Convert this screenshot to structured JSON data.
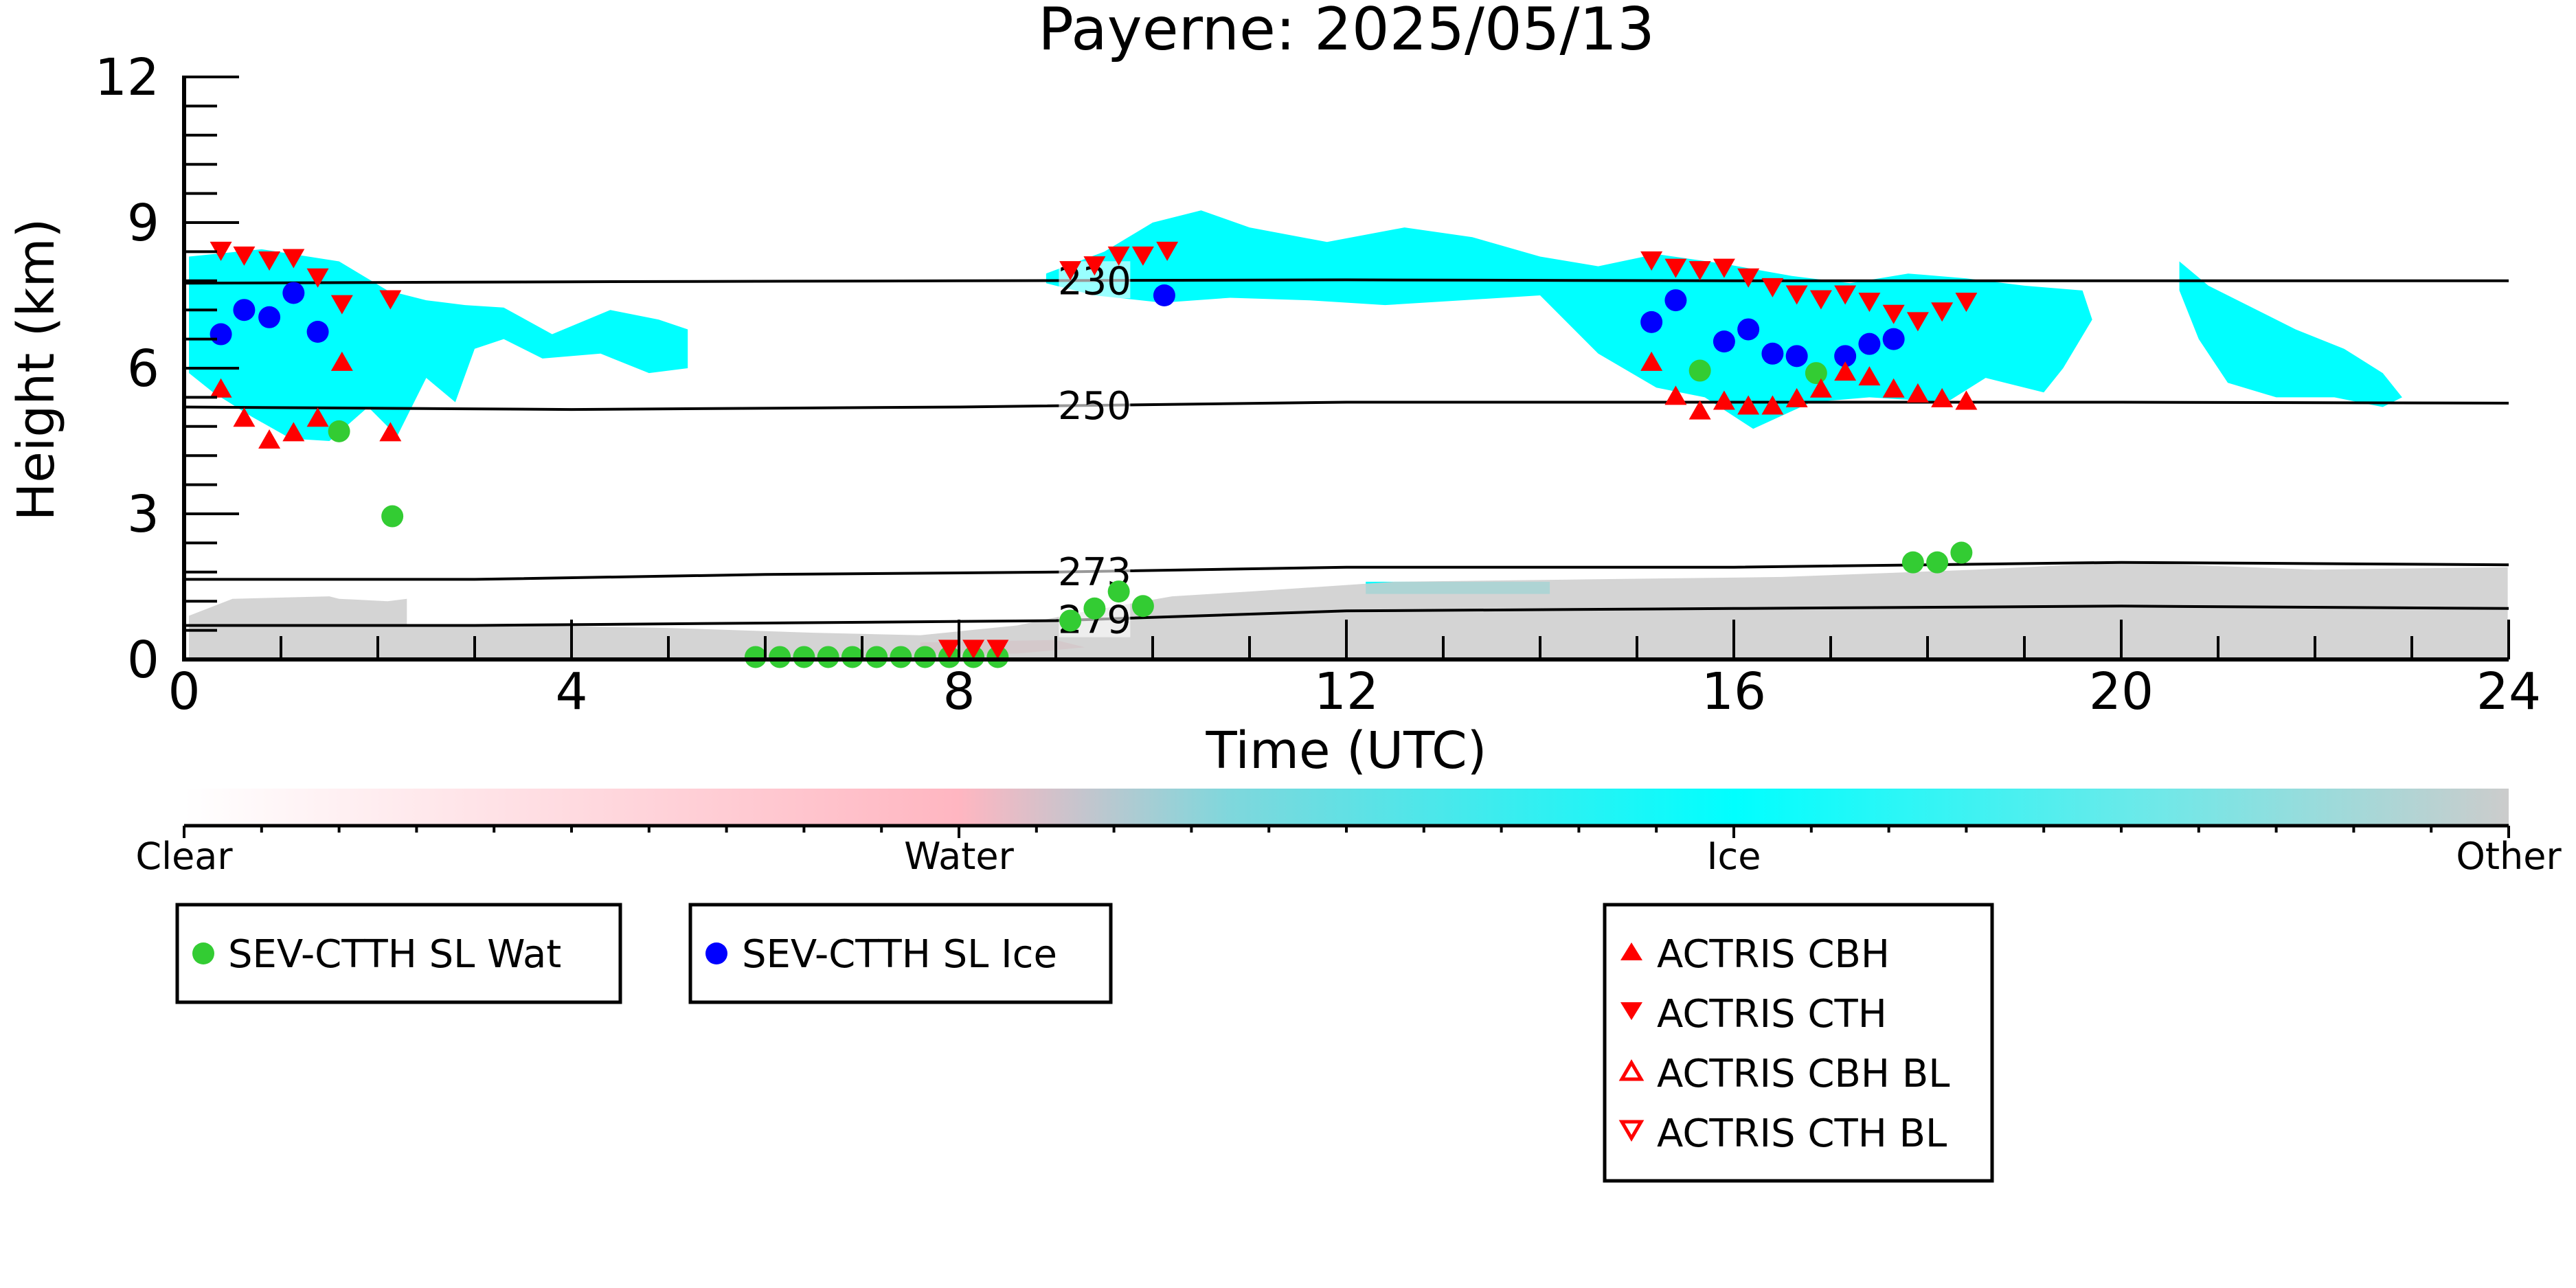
{
  "chart_data": {
    "type": "scatter",
    "title": "Payerne: 2025/05/13",
    "xlabel": "Time (UTC)",
    "ylabel": "Height (km)",
    "xlim": [
      0,
      24
    ],
    "ylim": [
      0,
      12
    ],
    "x_ticks": [
      "0",
      "4",
      "8",
      "12",
      "16",
      "20",
      "24"
    ],
    "y_ticks": [
      "0",
      "3",
      "6",
      "9",
      "12"
    ],
    "colors": {
      "clear": "#ffffff",
      "water": "#ffb6c1",
      "ice": "#00ffff",
      "other": "#cccccc",
      "wat_marker": "#33cc33",
      "ice_marker": "#0000ff",
      "actris": "#ff0000"
    },
    "colorbar": {
      "labels": [
        "Clear",
        "Water",
        "Ice",
        "Other"
      ]
    },
    "isotherms": [
      {
        "label": "230",
        "label_x": 9.4,
        "points": [
          [
            0,
            7.75
          ],
          [
            4,
            7.78
          ],
          [
            8,
            7.8
          ],
          [
            12,
            7.82
          ],
          [
            16,
            7.8
          ],
          [
            20,
            7.8
          ],
          [
            24,
            7.8
          ]
        ]
      },
      {
        "label": "250",
        "label_x": 9.4,
        "points": [
          [
            0,
            5.2
          ],
          [
            4,
            5.15
          ],
          [
            8,
            5.2
          ],
          [
            12,
            5.3
          ],
          [
            16,
            5.3
          ],
          [
            20,
            5.3
          ],
          [
            24,
            5.28
          ]
        ]
      },
      {
        "label": "273",
        "label_x": 9.4,
        "points": [
          [
            0,
            1.65
          ],
          [
            3,
            1.65
          ],
          [
            6,
            1.75
          ],
          [
            9,
            1.8
          ],
          [
            12,
            1.9
          ],
          [
            16,
            1.9
          ],
          [
            20,
            2.0
          ],
          [
            24,
            1.95
          ]
        ]
      },
      {
        "label": "279",
        "label_x": 9.4,
        "points": [
          [
            0,
            0.7
          ],
          [
            3,
            0.7
          ],
          [
            6,
            0.75
          ],
          [
            9,
            0.8
          ],
          [
            12,
            1.0
          ],
          [
            16,
            1.05
          ],
          [
            20,
            1.1
          ],
          [
            24,
            1.05
          ]
        ]
      }
    ],
    "series": [
      {
        "name": "SEV-CTTH SL Wat",
        "marker": "circle",
        "color": "#33cc33",
        "points": [
          [
            1.6,
            4.7
          ],
          [
            2.15,
            2.95
          ],
          [
            5.9,
            0.05
          ],
          [
            6.15,
            0.05
          ],
          [
            6.4,
            0.05
          ],
          [
            6.65,
            0.05
          ],
          [
            6.9,
            0.05
          ],
          [
            7.15,
            0.05
          ],
          [
            7.4,
            0.05
          ],
          [
            7.65,
            0.05
          ],
          [
            7.9,
            0.05
          ],
          [
            8.15,
            0.05
          ],
          [
            8.4,
            0.05
          ],
          [
            9.15,
            0.8
          ],
          [
            9.4,
            1.05
          ],
          [
            9.65,
            1.4
          ],
          [
            9.9,
            1.1
          ],
          [
            15.65,
            5.95
          ],
          [
            16.85,
            5.9
          ],
          [
            17.85,
            2.0
          ],
          [
            18.1,
            2.0
          ],
          [
            18.35,
            2.2
          ]
        ]
      },
      {
        "name": "SEV-CTTH SL Ice",
        "marker": "circle",
        "color": "#0000ff",
        "points": [
          [
            0.38,
            6.7
          ],
          [
            0.62,
            7.2
          ],
          [
            0.88,
            7.05
          ],
          [
            1.13,
            7.55
          ],
          [
            1.38,
            6.75
          ],
          [
            10.12,
            7.5
          ],
          [
            15.15,
            6.95
          ],
          [
            15.4,
            7.4
          ],
          [
            15.9,
            6.55
          ],
          [
            16.15,
            6.8
          ],
          [
            16.4,
            6.3
          ],
          [
            16.65,
            6.25
          ],
          [
            17.15,
            6.25
          ],
          [
            17.4,
            6.5
          ],
          [
            17.65,
            6.6
          ]
        ]
      },
      {
        "name": "ACTRIS CBH",
        "marker": "triangle-up",
        "color": "#ff0000",
        "points": [
          [
            0.38,
            5.55
          ],
          [
            0.62,
            4.95
          ],
          [
            0.88,
            4.5
          ],
          [
            1.13,
            4.65
          ],
          [
            1.38,
            4.95
          ],
          [
            1.63,
            6.1
          ],
          [
            2.13,
            4.65
          ],
          [
            15.15,
            6.1
          ],
          [
            15.4,
            5.4
          ],
          [
            15.65,
            5.1
          ],
          [
            15.9,
            5.3
          ],
          [
            16.15,
            5.2
          ],
          [
            16.4,
            5.2
          ],
          [
            16.65,
            5.35
          ],
          [
            16.9,
            5.55
          ],
          [
            17.15,
            5.9
          ],
          [
            17.4,
            5.8
          ],
          [
            17.65,
            5.55
          ],
          [
            17.9,
            5.45
          ],
          [
            18.15,
            5.35
          ],
          [
            18.4,
            5.3
          ]
        ]
      },
      {
        "name": "ACTRIS CTH",
        "marker": "triangle-down",
        "color": "#ff0000",
        "points": [
          [
            0.38,
            8.45
          ],
          [
            0.62,
            8.35
          ],
          [
            0.88,
            8.25
          ],
          [
            1.13,
            8.3
          ],
          [
            1.38,
            7.9
          ],
          [
            1.63,
            7.35
          ],
          [
            2.13,
            7.45
          ],
          [
            7.9,
            0.25
          ],
          [
            8.15,
            0.25
          ],
          [
            8.4,
            0.25
          ],
          [
            9.15,
            8.05
          ],
          [
            9.4,
            8.15
          ],
          [
            9.65,
            8.35
          ],
          [
            9.9,
            8.35
          ],
          [
            10.15,
            8.45
          ],
          [
            15.15,
            8.25
          ],
          [
            15.4,
            8.1
          ],
          [
            15.65,
            8.05
          ],
          [
            15.9,
            8.1
          ],
          [
            16.15,
            7.9
          ],
          [
            16.4,
            7.7
          ],
          [
            16.65,
            7.55
          ],
          [
            16.9,
            7.45
          ],
          [
            17.15,
            7.55
          ],
          [
            17.4,
            7.4
          ],
          [
            17.65,
            7.15
          ],
          [
            17.9,
            7.0
          ],
          [
            18.15,
            7.2
          ],
          [
            18.4,
            7.4
          ]
        ]
      },
      {
        "name": "ACTRIS CBH BL",
        "marker": "triangle-up-open",
        "color": "#ff0000",
        "points": []
      },
      {
        "name": "ACTRIS CTH BL",
        "marker": "triangle-down-open",
        "color": "#ff0000",
        "points": []
      }
    ],
    "cloud_regions": [
      {
        "phase": "ice",
        "color": "#00ffff",
        "x": [
          0.05,
          0.8,
          1.6,
          2.1,
          2.5,
          2.9,
          3.3,
          3.8,
          4.4,
          4.9,
          5.2,
          5.2,
          4.8,
          4.3,
          3.7,
          3.3,
          3.0,
          2.8,
          2.5,
          2.2,
          1.9,
          1.5,
          1.1,
          0.7,
          0.3,
          0.05
        ],
        "y": [
          8.3,
          8.45,
          8.2,
          7.6,
          7.4,
          7.3,
          7.25,
          6.7,
          7.2,
          7.0,
          6.8,
          6.0,
          5.9,
          6.3,
          6.2,
          6.6,
          6.4,
          5.3,
          5.8,
          4.6,
          5.2,
          4.5,
          4.55,
          5.0,
          5.5,
          5.9
        ]
      },
      {
        "phase": "ice",
        "color": "#00ffff",
        "x": [
          8.9,
          9.5,
          10.0,
          10.5,
          11.0,
          11.8,
          12.6,
          13.3,
          14.0,
          14.6,
          15.2,
          15.9,
          16.6,
          17.2,
          17.8,
          18.4,
          19.0,
          19.6,
          19.7,
          19.4,
          19.2,
          18.6,
          18.2,
          17.4,
          16.8,
          16.2,
          15.7,
          15.2,
          14.6,
          14.0,
          13.2,
          12.4,
          11.6,
          10.8,
          10.1,
          9.4,
          8.9
        ],
        "y": [
          7.95,
          8.4,
          9.0,
          9.25,
          8.9,
          8.6,
          8.9,
          8.7,
          8.3,
          8.1,
          8.35,
          8.15,
          7.9,
          7.75,
          7.95,
          7.85,
          7.7,
          7.6,
          7.0,
          6.0,
          5.5,
          5.8,
          5.3,
          5.4,
          5.3,
          4.75,
          5.4,
          5.6,
          6.3,
          7.5,
          7.4,
          7.3,
          7.4,
          7.45,
          7.35,
          7.5,
          7.75
        ]
      },
      {
        "phase": "ice",
        "color": "#00ffff",
        "x": [
          20.6,
          20.9,
          21.3,
          21.8,
          22.3,
          22.7,
          22.9,
          22.7,
          22.2,
          21.6,
          21.1,
          20.8,
          20.6
        ],
        "y": [
          8.2,
          7.7,
          7.3,
          6.8,
          6.4,
          5.9,
          5.4,
          5.2,
          5.4,
          5.4,
          5.7,
          6.6,
          7.6
        ]
      },
      {
        "phase": "ice",
        "color": "#00ffff",
        "x": [
          12.2,
          14.1,
          14.1,
          12.2
        ],
        "y": [
          1.6,
          1.6,
          1.35,
          1.35
        ]
      },
      {
        "phase": "water",
        "color": "#ffb6c1",
        "x": [
          7.6,
          9.0,
          9.3,
          8.6,
          7.6
        ],
        "y": [
          0.35,
          0.4,
          0.25,
          0.12,
          0.12
        ]
      },
      {
        "phase": "other",
        "color": "#cccccc",
        "x": [
          0.05,
          0.5,
          1.5,
          1.6,
          2.1,
          2.3,
          2.3,
          3.5,
          5.0,
          6.5,
          7.6,
          8.6,
          9.2,
          10.2,
          11.0,
          12.5,
          14.5,
          16.5,
          18.5,
          20.0,
          22.0,
          23.99,
          23.99,
          0.05
        ],
        "y": [
          0.9,
          1.25,
          1.3,
          1.25,
          1.2,
          1.25,
          0.7,
          0.7,
          0.65,
          0.55,
          0.5,
          0.7,
          0.95,
          1.3,
          1.4,
          1.6,
          1.65,
          1.7,
          1.85,
          2.0,
          1.85,
          1.9,
          0.02,
          0.02
        ]
      }
    ]
  },
  "legends": {
    "left": [
      "SEV-CTTH SL Wat"
    ],
    "middle": [
      "SEV-CTTH SL Ice"
    ],
    "right": [
      "ACTRIS CBH",
      "ACTRIS CTH",
      "ACTRIS CBH BL",
      "ACTRIS CTH BL"
    ]
  }
}
